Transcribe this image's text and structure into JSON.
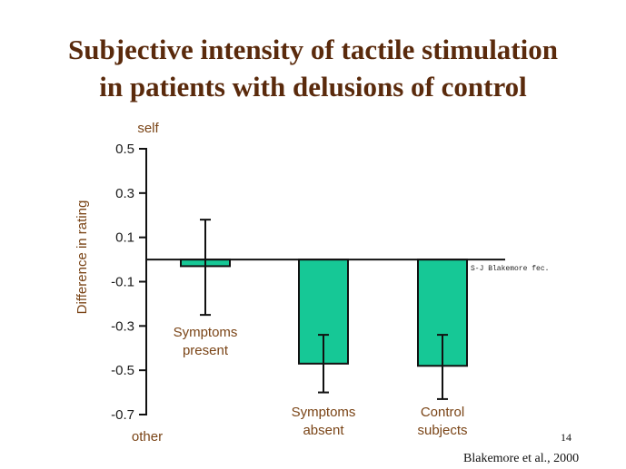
{
  "slide": {
    "title_line1": "Subjective intensity of tactile stimulation",
    "title_line2": "in patients with delusions of control",
    "slide_number": "14",
    "citation": "Blakemore et al., 2000",
    "watermark": "S-J Blakemore fec."
  },
  "chart_data": {
    "type": "bar",
    "title": "Subjective intensity of tactile stimulation in patients with delusions of control",
    "ylabel": "Difference in rating",
    "xlabel": "",
    "ylim": [
      -0.7,
      0.5
    ],
    "yticks": [
      0.5,
      0.3,
      0.1,
      -0.1,
      -0.3,
      -0.5,
      -0.7
    ],
    "ytick_labels": [
      "0.5",
      "0.3",
      "0.1",
      "-0.1",
      "-0.3",
      "-0.5",
      "-0.7"
    ],
    "y_top_label": "self",
    "y_bottom_label": "other",
    "categories": [
      {
        "line1": "Symptoms",
        "line2": "present"
      },
      {
        "line1": "Symptoms",
        "line2": "absent"
      },
      {
        "line1": "Control",
        "line2": "subjects"
      }
    ],
    "values": [
      -0.03,
      -0.47,
      -0.48
    ],
    "error_bars": [
      [
        -0.25,
        0.18
      ],
      [
        -0.6,
        -0.34
      ],
      [
        -0.63,
        -0.34
      ]
    ],
    "bar_color": "#16c896",
    "axis_color": "#111111",
    "label_color": "#7a4416",
    "grid": false
  }
}
